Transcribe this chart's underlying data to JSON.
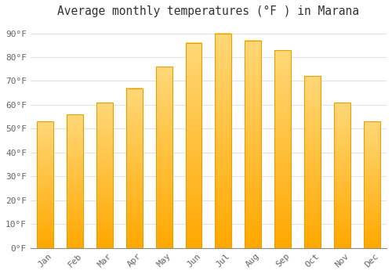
{
  "title": "Average monthly temperatures (°F ) in Marana",
  "months": [
    "Jan",
    "Feb",
    "Mar",
    "Apr",
    "May",
    "Jun",
    "Jul",
    "Aug",
    "Sep",
    "Oct",
    "Nov",
    "Dec"
  ],
  "values": [
    53,
    56,
    61,
    67,
    76,
    86,
    90,
    87,
    83,
    72,
    61,
    53
  ],
  "bar_color_top": "#FFD060",
  "bar_color_bottom": "#FFA000",
  "bar_color_edge": "#E8A000",
  "background_color": "#FFFFFF",
  "grid_color": "#E0E0E0",
  "yticks": [
    0,
    10,
    20,
    30,
    40,
    50,
    60,
    70,
    80,
    90
  ],
  "ylim": [
    0,
    95
  ],
  "title_fontsize": 10.5,
  "tick_fontsize": 8,
  "font_family": "monospace",
  "bar_width": 0.55
}
